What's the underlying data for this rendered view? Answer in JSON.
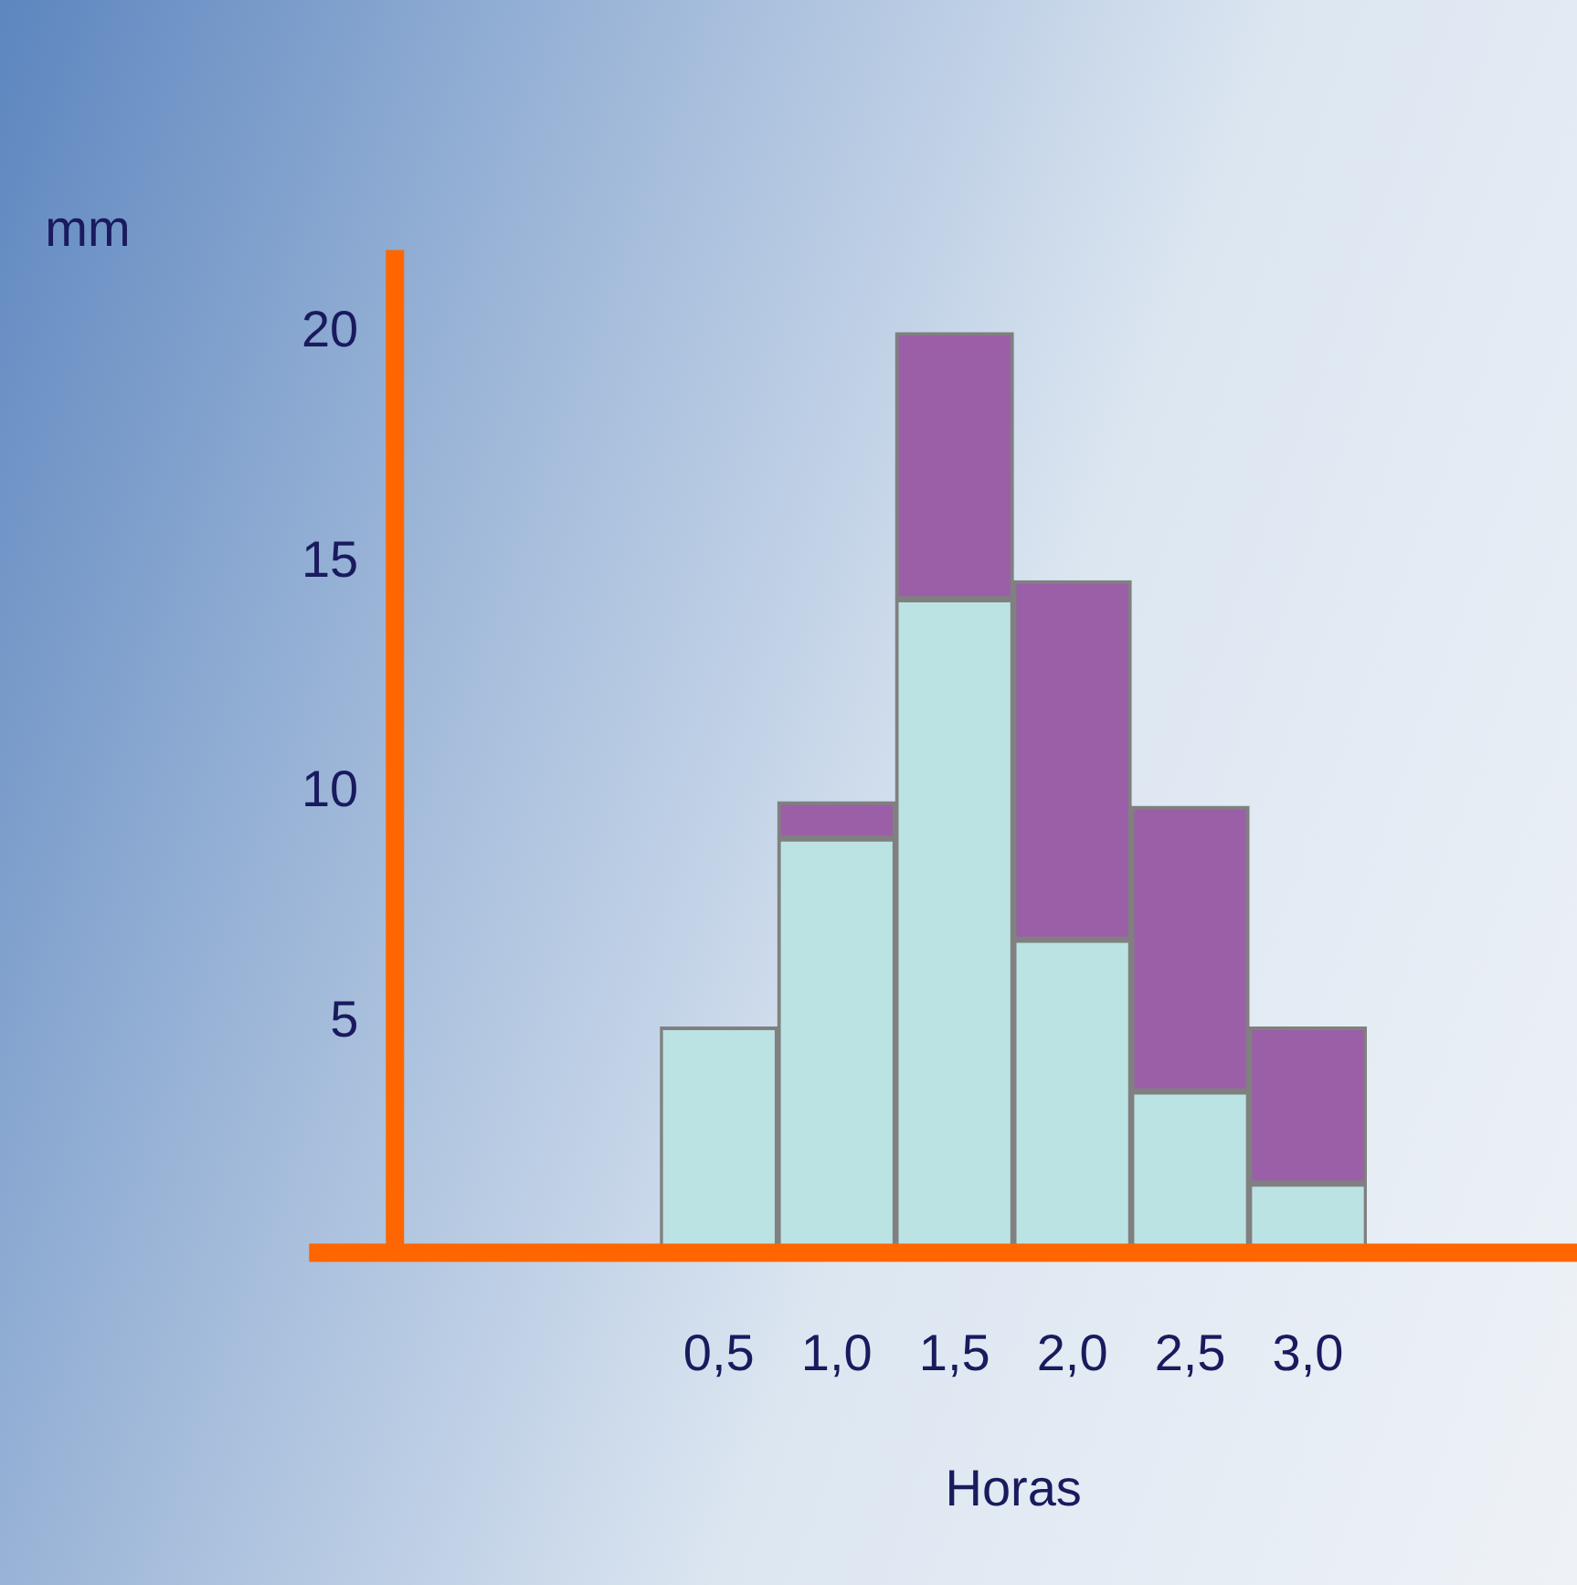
{
  "chart_data": {
    "type": "bar",
    "stacked": true,
    "xlabel": "Horas",
    "ylabel": "mm",
    "categories": [
      "0,5",
      "1,0",
      "1,5",
      "2,0",
      "2,5",
      "3,0"
    ],
    "series": [
      {
        "color": "#bce3e3",
        "values": [
          4.9,
          9,
          14.2,
          6.8,
          3.5,
          1.5
        ]
      },
      {
        "color": "#9b5fa8",
        "values": [
          0,
          0.8,
          5.8,
          7.8,
          6.2,
          3.4
        ]
      }
    ],
    "ylim": [
      0,
      20
    ],
    "yticks": [
      5,
      10,
      15,
      20
    ],
    "grid": false,
    "legend": false
  }
}
